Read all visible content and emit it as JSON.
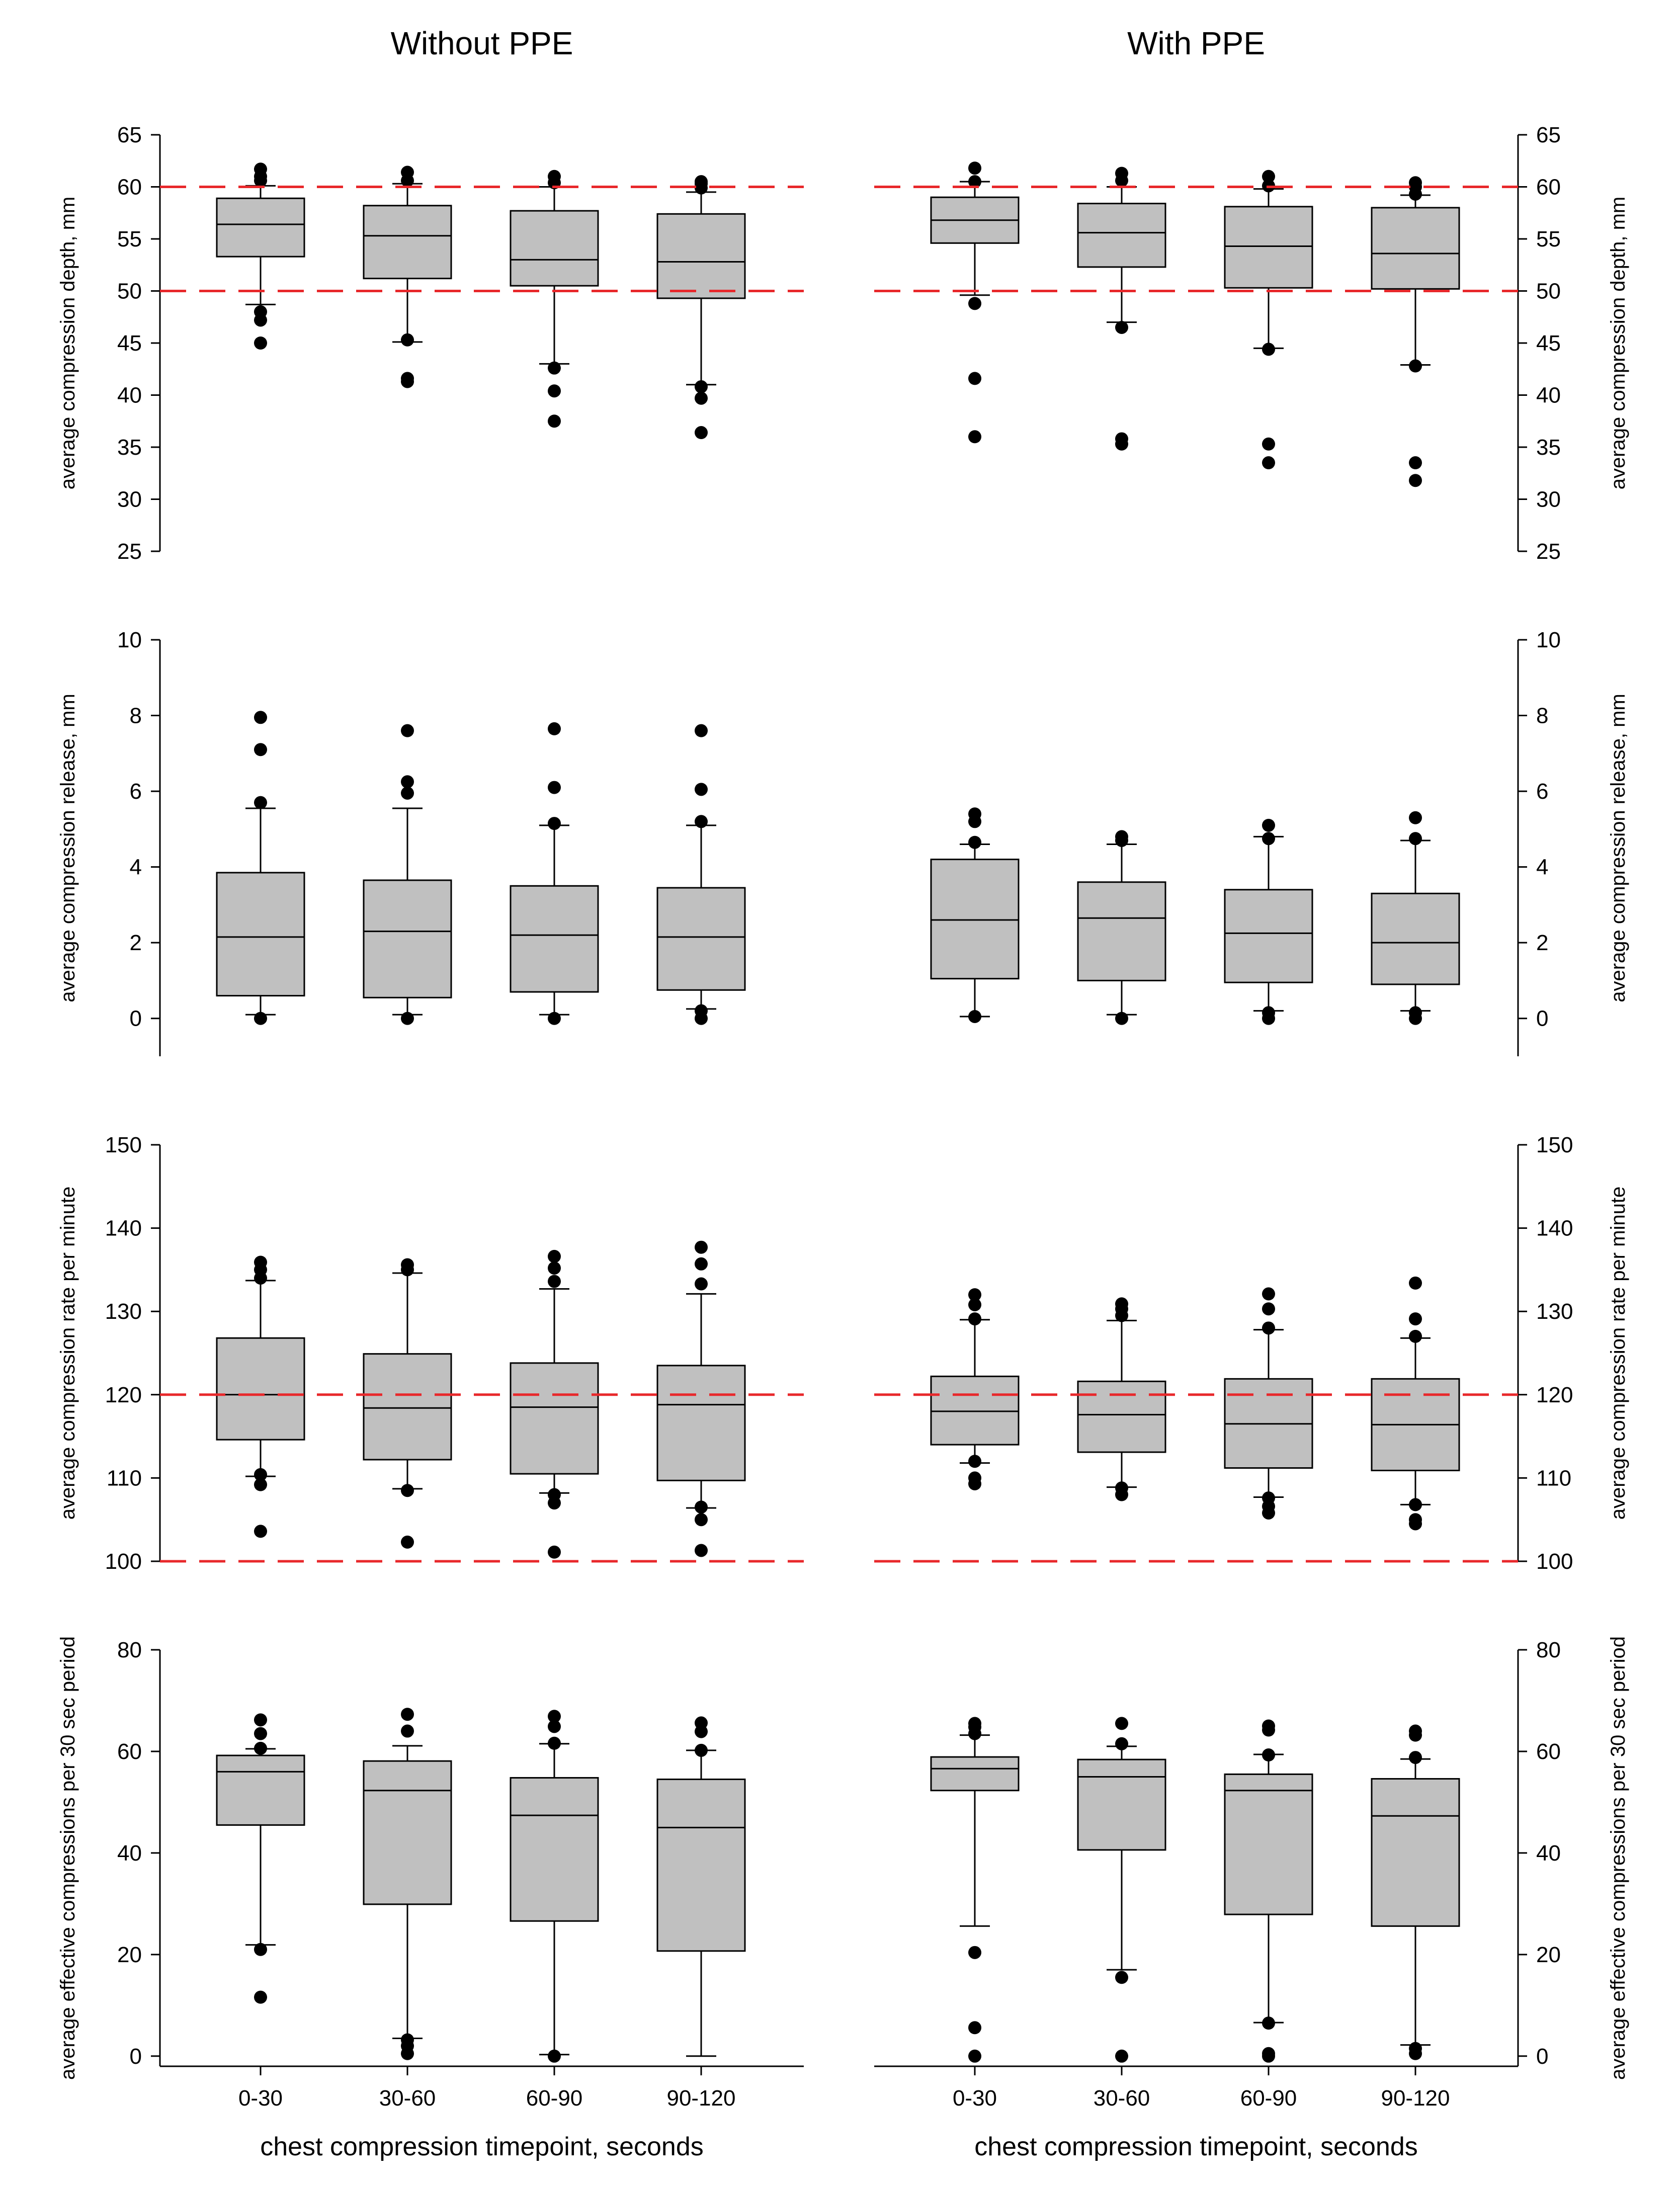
{
  "figure": {
    "left_title": "Without PPE",
    "right_title": "With PPE",
    "xlabel": "chest compression timepoint, seconds"
  },
  "colors": {
    "box_fill": "#c0c0c0",
    "box_stroke": "#000000",
    "reference_line": "#e8282b",
    "outlier": "#000000"
  },
  "chart_data": [
    {
      "type": "box",
      "group": "Without PPE",
      "ylabel": "average compression depth, mm",
      "ylim": [
        25,
        65
      ],
      "yticks": [
        25,
        30,
        35,
        40,
        45,
        50,
        55,
        60,
        65
      ],
      "reference_lines": [
        50,
        60
      ],
      "categories": [
        "0-30",
        "30-60",
        "60-90",
        "90-120"
      ],
      "boxes": [
        {
          "category": "0-30",
          "whisker_low": 48.7,
          "q1": 53.3,
          "median": 56.4,
          "q3": 58.9,
          "whisker_high": 60.1,
          "outliers": [
            45.0,
            47.2,
            48.0,
            60.6,
            61.0,
            61.7
          ]
        },
        {
          "category": "30-60",
          "whisker_low": 45.1,
          "q1": 51.2,
          "median": 55.3,
          "q3": 58.2,
          "whisker_high": 60.3,
          "outliers": [
            41.3,
            41.6,
            45.3,
            60.6,
            61.4
          ]
        },
        {
          "category": "60-90",
          "whisker_low": 43.0,
          "q1": 50.5,
          "median": 53.0,
          "q3": 57.7,
          "whisker_high": 60.0,
          "outliers": [
            37.5,
            40.4,
            42.6,
            60.4,
            61.0
          ]
        },
        {
          "category": "90-120",
          "whisker_low": 41.0,
          "q1": 49.3,
          "median": 52.8,
          "q3": 57.4,
          "whisker_high": 59.5,
          "outliers": [
            36.4,
            39.7,
            40.8,
            59.9,
            60.3,
            60.5
          ]
        }
      ]
    },
    {
      "type": "box",
      "group": "With PPE",
      "ylabel": "average compression depth, mm",
      "ylim": [
        25,
        65
      ],
      "yticks": [
        25,
        30,
        35,
        40,
        45,
        50,
        55,
        60,
        65
      ],
      "reference_lines": [
        50,
        60
      ],
      "categories": [
        "0-30",
        "30-60",
        "60-90",
        "90-120"
      ],
      "boxes": [
        {
          "category": "0-30",
          "whisker_low": 49.6,
          "q1": 54.6,
          "median": 56.8,
          "q3": 59.0,
          "whisker_high": 60.5,
          "outliers": [
            36.0,
            41.6,
            48.8,
            60.5,
            61.8
          ]
        },
        {
          "category": "30-60",
          "whisker_low": 47.0,
          "q1": 52.3,
          "median": 55.6,
          "q3": 58.4,
          "whisker_high": 60.0,
          "outliers": [
            35.3,
            35.8,
            46.5,
            60.6,
            61.3
          ]
        },
        {
          "category": "60-90",
          "whisker_low": 44.5,
          "q1": 50.3,
          "median": 54.3,
          "q3": 58.1,
          "whisker_high": 59.8,
          "outliers": [
            33.5,
            35.3,
            44.4,
            60.1,
            61.0
          ]
        },
        {
          "category": "90-120",
          "whisker_low": 42.9,
          "q1": 50.2,
          "median": 53.6,
          "q3": 58.0,
          "whisker_high": 59.2,
          "outliers": [
            31.8,
            33.5,
            42.8,
            59.3,
            60.0,
            60.4
          ]
        }
      ]
    },
    {
      "type": "box",
      "group": "Without PPE",
      "ylabel": "average compression release, mm",
      "ylim": [
        -1,
        10
      ],
      "yticks": [
        0,
        2,
        4,
        6,
        8,
        10
      ],
      "reference_lines": [],
      "categories": [
        "0-30",
        "30-60",
        "60-90",
        "90-120"
      ],
      "boxes": [
        {
          "category": "0-30",
          "whisker_low": 0.1,
          "q1": 0.6,
          "median": 2.15,
          "q3": 3.85,
          "whisker_high": 5.55,
          "outliers": [
            0.0,
            5.7,
            7.1,
            7.95
          ]
        },
        {
          "category": "30-60",
          "whisker_low": 0.1,
          "q1": 0.55,
          "median": 2.3,
          "q3": 3.65,
          "whisker_high": 5.55,
          "outliers": [
            0.0,
            5.95,
            6.25,
            7.6
          ]
        },
        {
          "category": "60-90",
          "whisker_low": 0.1,
          "q1": 0.7,
          "median": 2.2,
          "q3": 3.5,
          "whisker_high": 5.1,
          "outliers": [
            0.0,
            5.15,
            6.1,
            7.65
          ]
        },
        {
          "category": "90-120",
          "whisker_low": 0.25,
          "q1": 0.75,
          "median": 2.15,
          "q3": 3.45,
          "whisker_high": 5.1,
          "outliers": [
            0.0,
            0.2,
            5.2,
            6.05,
            7.6
          ]
        }
      ]
    },
    {
      "type": "box",
      "group": "With PPE",
      "ylabel": "average compression release, mm",
      "ylim": [
        -1,
        10
      ],
      "yticks": [
        0,
        2,
        4,
        6,
        8,
        10
      ],
      "reference_lines": [],
      "categories": [
        "0-30",
        "30-60",
        "60-90",
        "90-120"
      ],
      "boxes": [
        {
          "category": "0-30",
          "whisker_low": 0.05,
          "q1": 1.05,
          "median": 2.6,
          "q3": 4.2,
          "whisker_high": 4.6,
          "outliers": [
            0.05,
            4.65,
            5.2,
            5.4
          ]
        },
        {
          "category": "30-60",
          "whisker_low": 0.1,
          "q1": 1.0,
          "median": 2.65,
          "q3": 3.6,
          "whisker_high": 4.6,
          "outliers": [
            0.0,
            4.7,
            4.8
          ]
        },
        {
          "category": "60-90",
          "whisker_low": 0.2,
          "q1": 0.95,
          "median": 2.25,
          "q3": 3.4,
          "whisker_high": 4.8,
          "outliers": [
            0.0,
            0.15,
            4.75,
            5.1
          ]
        },
        {
          "category": "90-120",
          "whisker_low": 0.2,
          "q1": 0.9,
          "median": 2.0,
          "q3": 3.3,
          "whisker_high": 4.7,
          "outliers": [
            0.0,
            0.15,
            4.75,
            5.3
          ]
        }
      ]
    },
    {
      "type": "box",
      "group": "Without PPE",
      "ylabel": "average compression rate per minute",
      "ylim": [
        100,
        150
      ],
      "yticks": [
        100,
        110,
        120,
        130,
        140,
        150
      ],
      "reference_lines": [
        100,
        120
      ],
      "categories": [
        "0-30",
        "30-60",
        "60-90",
        "90-120"
      ],
      "boxes": [
        {
          "category": "0-30",
          "whisker_low": 110.2,
          "q1": 114.6,
          "median": 120.0,
          "q3": 126.8,
          "whisker_high": 133.7,
          "outliers": [
            103.6,
            109.2,
            110.4,
            134.0,
            135.0,
            135.9
          ]
        },
        {
          "category": "30-60",
          "whisker_low": 108.7,
          "q1": 112.2,
          "median": 118.4,
          "q3": 124.9,
          "whisker_high": 134.6,
          "outliers": [
            102.3,
            108.5,
            135.0,
            135.6
          ]
        },
        {
          "category": "60-90",
          "whisker_low": 108.2,
          "q1": 110.5,
          "median": 118.5,
          "q3": 123.8,
          "whisker_high": 132.7,
          "outliers": [
            101.1,
            107.0,
            108.0,
            133.6,
            135.2,
            136.6
          ]
        },
        {
          "category": "90-120",
          "whisker_low": 106.4,
          "q1": 109.7,
          "median": 118.8,
          "q3": 123.5,
          "whisker_high": 132.1,
          "outliers": [
            101.3,
            105.0,
            106.5,
            133.3,
            135.7,
            137.7
          ]
        }
      ]
    },
    {
      "type": "box",
      "group": "With PPE",
      "ylabel": "average compression rate per minute",
      "ylim": [
        100,
        150
      ],
      "yticks": [
        100,
        110,
        120,
        130,
        140,
        150
      ],
      "reference_lines": [
        100,
        120
      ],
      "categories": [
        "0-30",
        "30-60",
        "60-90",
        "90-120"
      ],
      "boxes": [
        {
          "category": "0-30",
          "whisker_low": 111.8,
          "q1": 114.0,
          "median": 118.0,
          "q3": 122.2,
          "whisker_high": 129.0,
          "outliers": [
            109.3,
            110.0,
            112.0,
            129.1,
            130.8,
            132.0
          ]
        },
        {
          "category": "30-60",
          "whisker_low": 108.9,
          "q1": 113.1,
          "median": 117.6,
          "q3": 121.6,
          "whisker_high": 128.9,
          "outliers": [
            108.0,
            108.8,
            129.5,
            130.3,
            130.9
          ]
        },
        {
          "category": "60-90",
          "whisker_low": 107.7,
          "q1": 111.2,
          "median": 116.5,
          "q3": 121.9,
          "whisker_high": 127.8,
          "outliers": [
            105.8,
            106.6,
            107.6,
            128.0,
            130.3,
            132.1
          ]
        },
        {
          "category": "90-120",
          "whisker_low": 106.8,
          "q1": 110.9,
          "median": 116.4,
          "q3": 121.9,
          "whisker_high": 126.8,
          "outliers": [
            104.5,
            105.0,
            106.8,
            127.0,
            129.1,
            133.4
          ]
        }
      ]
    },
    {
      "type": "box",
      "group": "Without PPE",
      "ylabel": "average effective compressions per 30 sec period",
      "ylim": [
        -2,
        80
      ],
      "yticks": [
        0,
        20,
        40,
        60,
        80
      ],
      "reference_lines": [],
      "categories": [
        "0-30",
        "30-60",
        "60-90",
        "90-120"
      ],
      "boxes": [
        {
          "category": "0-30",
          "whisker_low": 21.9,
          "q1": 45.5,
          "median": 56.0,
          "q3": 59.2,
          "whisker_high": 60.5,
          "outliers": [
            11.6,
            21.0,
            60.6,
            63.5,
            66.2
          ]
        },
        {
          "category": "30-60",
          "whisker_low": 3.5,
          "q1": 29.9,
          "median": 52.3,
          "q3": 58.1,
          "whisker_high": 61.1,
          "outliers": [
            0.5,
            2.0,
            3.2,
            64.0,
            67.3
          ]
        },
        {
          "category": "60-90",
          "whisker_low": 0.3,
          "q1": 26.6,
          "median": 47.4,
          "q3": 54.8,
          "whisker_high": 61.5,
          "outliers": [
            0.0,
            61.6,
            64.9,
            66.9
          ]
        },
        {
          "category": "90-120",
          "whisker_low": 0.0,
          "q1": 20.7,
          "median": 45.0,
          "q3": 54.5,
          "whisker_high": 60.2,
          "outliers": [
            60.2,
            63.9,
            65.6
          ]
        }
      ]
    },
    {
      "type": "box",
      "group": "With PPE",
      "ylabel": "average effective compressions per 30 sec period",
      "ylim": [
        -2,
        80
      ],
      "yticks": [
        0,
        20,
        40,
        60,
        80
      ],
      "reference_lines": [],
      "categories": [
        "0-30",
        "30-60",
        "60-90",
        "90-120"
      ],
      "boxes": [
        {
          "category": "0-30",
          "whisker_low": 25.6,
          "q1": 52.3,
          "median": 56.6,
          "q3": 58.9,
          "whisker_high": 63.2,
          "outliers": [
            0.0,
            5.6,
            20.4,
            63.5,
            64.8,
            65.5
          ]
        },
        {
          "category": "30-60",
          "whisker_low": 17.0,
          "q1": 40.6,
          "median": 55.0,
          "q3": 58.4,
          "whisker_high": 61.0,
          "outliers": [
            0.0,
            15.5,
            61.5,
            65.5
          ]
        },
        {
          "category": "60-90",
          "whisker_low": 6.6,
          "q1": 27.9,
          "median": 52.3,
          "q3": 55.5,
          "whisker_high": 59.4,
          "outliers": [
            0.0,
            0.5,
            6.5,
            59.3,
            64.2,
            65.0
          ]
        },
        {
          "category": "90-120",
          "whisker_low": 2.2,
          "q1": 25.6,
          "median": 47.3,
          "q3": 54.6,
          "whisker_high": 58.5,
          "outliers": [
            0.5,
            1.5,
            58.8,
            63.2,
            64.0
          ]
        }
      ]
    }
  ]
}
